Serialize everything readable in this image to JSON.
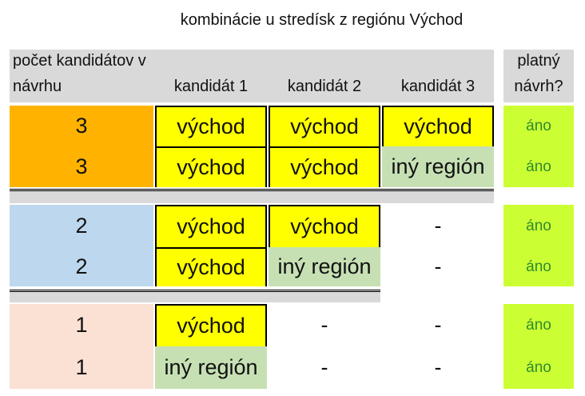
{
  "title": "kombinácie u stredísk z regiónu Východ",
  "header": [
    "počet kandidátov v návrhu",
    "kandidát 1",
    "kandidát 2",
    "kandidát 3",
    "platný návrh?"
  ],
  "rows": [
    [
      3,
      "východ",
      "východ",
      "východ",
      "áno"
    ],
    [
      3,
      "východ",
      "východ",
      "iný región",
      "áno"
    ],
    [
      2,
      "východ",
      "východ",
      "-",
      "áno"
    ],
    [
      2,
      "východ",
      "iný región",
      "-",
      "áno"
    ],
    [
      1,
      "východ",
      "-",
      "-",
      "áno"
    ],
    [
      1,
      "iný región",
      "-",
      "-",
      "áno"
    ]
  ]
}
